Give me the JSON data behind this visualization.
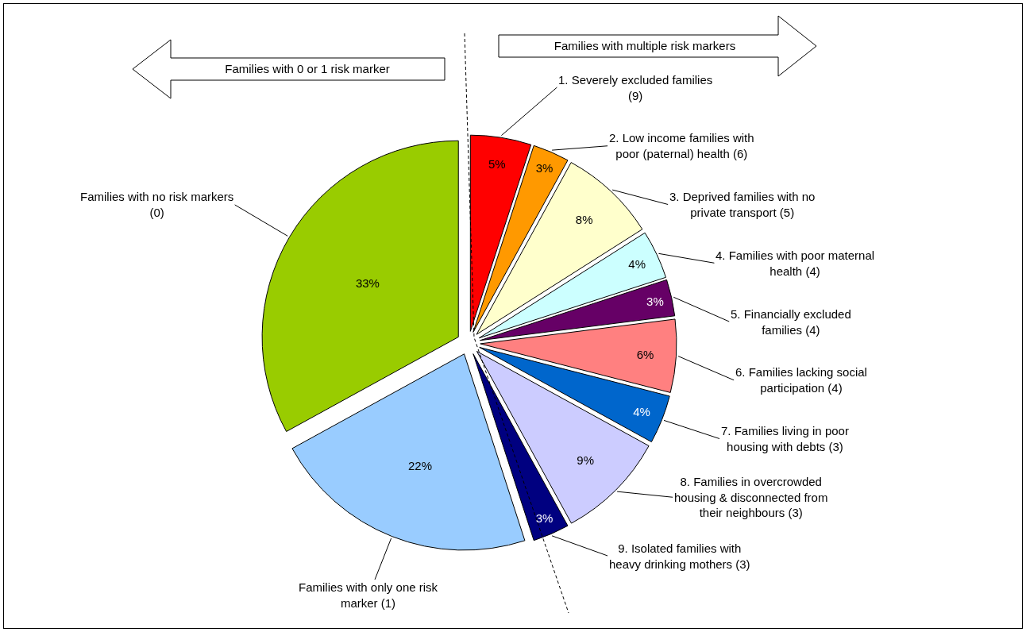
{
  "chart_data": {
    "type": "pie",
    "categories": [
      "1. Severely excluded families (9)",
      "2. Low income families with poor (paternal) health (6)",
      "3. Deprived families with no private transport (5)",
      "4. Families with poor maternal health (4)",
      "5. Financially excluded families (4)",
      "6. Families lacking social participation (4)",
      "7. Families living in poor housing with debts (3)",
      "8. Families in overcrowded housing & disconnected from their neighbours (3)",
      "9. Isolated families with heavy drinking mothers (3)",
      "Families with only one risk marker (1)",
      "Families with no risk markers (0)"
    ],
    "values": [
      5,
      3,
      8,
      4,
      3,
      6,
      4,
      9,
      3,
      22,
      33
    ],
    "value_labels": [
      "5%",
      "3%",
      "8%",
      "4%",
      "3%",
      "6%",
      "4%",
      "9%",
      "3%",
      "22%",
      "33%"
    ],
    "colors": [
      "#ff0000",
      "#ff9900",
      "#ffffcc",
      "#ccffff",
      "#660066",
      "#ff8080",
      "#0066cc",
      "#ccccff",
      "#000080",
      "#99ccff",
      "#99cc00"
    ],
    "annotations": [
      "Families with 0 or 1 risk marker",
      "Families with multiple risk markers"
    ],
    "legend": false
  }
}
